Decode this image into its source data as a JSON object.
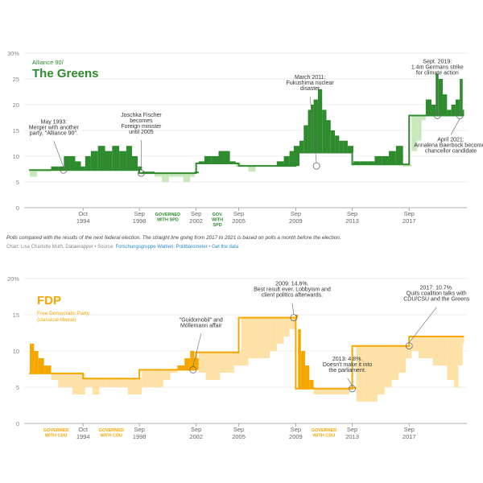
{
  "chart_data": [
    {
      "type": "area",
      "panel": "greens",
      "subtitle": "Alliance 90/",
      "title": "The Greens",
      "color": "#2e8b2e",
      "light_color": "#c9e8bd",
      "ylim": [
        0,
        30
      ],
      "y_ticks": [
        "0",
        "5",
        "10",
        "15",
        "20",
        "25",
        "30%"
      ],
      "x_ticks": [
        {
          "label": "Oct",
          "sub": "1994",
          "year": 1994.75
        },
        {
          "label": "Sep",
          "sub": "1998",
          "year": 1998.72
        },
        {
          "label": "Sep",
          "sub": "2002",
          "year": 2002.72
        },
        {
          "label": "Sep",
          "sub": "2005",
          "year": 2005.72
        },
        {
          "label": "Sep",
          "sub": "2009",
          "year": 2009.74
        },
        {
          "label": "Sep",
          "sub": "2013",
          "year": 2013.72
        },
        {
          "label": "Sep",
          "sub": "2017",
          "year": 2017.73
        }
      ],
      "government_periods": [
        {
          "label": "GOVERNED WITH SPD",
          "start": 1998.72,
          "end": 2002.72
        },
        {
          "label": "GOV. WITH SPD",
          "start": 2002.72,
          "end": 2005.72
        }
      ],
      "election_results": [
        {
          "start": 1990.95,
          "end": 1994.75,
          "value": 7.3
        },
        {
          "start": 1994.75,
          "end": 1998.72,
          "value": 7.3
        },
        {
          "start": 1998.72,
          "end": 2002.72,
          "value": 6.7
        },
        {
          "start": 2002.72,
          "end": 2005.72,
          "value": 8.6
        },
        {
          "start": 2005.72,
          "end": 2009.74,
          "value": 8.1
        },
        {
          "start": 2009.74,
          "end": 2013.72,
          "value": 10.7
        },
        {
          "start": 2013.72,
          "end": 2017.73,
          "value": 8.4
        },
        {
          "start": 2017.73,
          "end": 2021.6,
          "value": 17.9
        }
      ],
      "poll_points": [
        [
          1991.0,
          6
        ],
        [
          1991.5,
          7
        ],
        [
          1992.0,
          7
        ],
        [
          1992.5,
          8
        ],
        [
          1993.0,
          8
        ],
        [
          1993.4,
          10
        ],
        [
          1993.8,
          10
        ],
        [
          1994.2,
          9
        ],
        [
          1994.6,
          8
        ],
        [
          1994.9,
          10
        ],
        [
          1995.3,
          11
        ],
        [
          1995.8,
          12
        ],
        [
          1996.3,
          11
        ],
        [
          1996.8,
          12
        ],
        [
          1997.3,
          11
        ],
        [
          1997.8,
          12
        ],
        [
          1998.2,
          10
        ],
        [
          1998.6,
          8
        ],
        [
          1998.9,
          7
        ],
        [
          1999.3,
          7
        ],
        [
          1999.8,
          6
        ],
        [
          2000.3,
          5
        ],
        [
          2000.8,
          6
        ],
        [
          2001.3,
          6
        ],
        [
          2001.8,
          5
        ],
        [
          2002.3,
          6
        ],
        [
          2002.6,
          7
        ],
        [
          2002.9,
          9
        ],
        [
          2003.3,
          10
        ],
        [
          2003.8,
          10
        ],
        [
          2004.3,
          11
        ],
        [
          2004.7,
          11
        ],
        [
          2005.1,
          9
        ],
        [
          2005.5,
          8
        ],
        [
          2005.9,
          8
        ],
        [
          2006.4,
          7
        ],
        [
          2006.9,
          8
        ],
        [
          2007.4,
          8
        ],
        [
          2007.9,
          8
        ],
        [
          2008.4,
          9
        ],
        [
          2008.9,
          10
        ],
        [
          2009.3,
          11
        ],
        [
          2009.6,
          12
        ],
        [
          2010.0,
          13
        ],
        [
          2010.3,
          16
        ],
        [
          2010.6,
          19
        ],
        [
          2010.8,
          20
        ],
        [
          2011.0,
          21
        ],
        [
          2011.3,
          23
        ],
        [
          2011.6,
          19
        ],
        [
          2011.9,
          17
        ],
        [
          2012.2,
          15
        ],
        [
          2012.5,
          14
        ],
        [
          2012.8,
          13
        ],
        [
          2013.1,
          13
        ],
        [
          2013.4,
          12
        ],
        [
          2013.8,
          9
        ],
        [
          2014.3,
          9
        ],
        [
          2014.8,
          9
        ],
        [
          2015.3,
          10
        ],
        [
          2015.8,
          10
        ],
        [
          2016.3,
          11
        ],
        [
          2016.8,
          12
        ],
        [
          2017.3,
          8
        ],
        [
          2017.6,
          8
        ],
        [
          2017.9,
          11
        ],
        [
          2018.3,
          13
        ],
        [
          2018.6,
          17
        ],
        [
          2018.9,
          21
        ],
        [
          2019.3,
          20
        ],
        [
          2019.6,
          26
        ],
        [
          2019.8,
          25
        ],
        [
          2020.1,
          22
        ],
        [
          2020.4,
          19
        ],
        [
          2020.7,
          20
        ],
        [
          2021.0,
          21
        ],
        [
          2021.3,
          25
        ],
        [
          2021.5,
          19
        ]
      ],
      "annotations": [
        {
          "lines": [
            "May 1993:",
            "Merger with another",
            "party, \"Alliance 90\"."
          ],
          "x": 1993.37,
          "y": 7.3
        },
        {
          "lines": [
            "Joschka Fischer",
            "becomes",
            "Foreign minister",
            "until 2005"
          ],
          "x": 1998.85,
          "y": 6.7
        },
        {
          "lines": [
            "March 2011:",
            "Fukushima nuclear",
            "disaster"
          ],
          "x": 2011.2,
          "y": 8.1
        },
        {
          "lines": [
            "Sept. 2019:",
            "1.4m Germans strike",
            "for climate action"
          ],
          "x": 2019.72,
          "y": 17.9
        },
        {
          "lines": [
            "April 2021:",
            "Annalena Baerbock becomes",
            "chancellor candidate"
          ],
          "x": 2021.3,
          "y": 17.9
        }
      ]
    },
    {
      "type": "area",
      "panel": "fdp",
      "title": "FDP",
      "subtitle": "Free Democratic Party (classical-liberal)",
      "color": "#f5a700",
      "light_color": "#fde1a6",
      "ylim": [
        0,
        20
      ],
      "y_ticks": [
        "0",
        "5",
        "10",
        "15",
        "20%"
      ],
      "x_ticks": [
        {
          "label": "Oct",
          "sub": "1994",
          "year": 1994.75
        },
        {
          "label": "Sep",
          "sub": "1998",
          "year": 1998.72
        },
        {
          "label": "Sep",
          "sub": "2002",
          "year": 2002.72
        },
        {
          "label": "Sep",
          "sub": "2005",
          "year": 2005.72
        },
        {
          "label": "Sep",
          "sub": "2009",
          "year": 2009.74
        },
        {
          "label": "Sep",
          "sub": "2013",
          "year": 2013.72
        },
        {
          "label": "Sep",
          "sub": "2017",
          "year": 2017.73
        }
      ],
      "government_periods": [
        {
          "label": "GOVERNED WITH CDU",
          "start": 1990.95,
          "end": 1994.75
        },
        {
          "label": "GOVERNED WITH CDU",
          "start": 1994.75,
          "end": 1998.72
        },
        {
          "label": "GOVERNED WITH CDU",
          "start": 2009.74,
          "end": 2013.72
        }
      ],
      "election_results": [
        {
          "start": 1990.95,
          "end": 1994.75,
          "value": 6.9
        },
        {
          "start": 1994.75,
          "end": 1998.72,
          "value": 6.2
        },
        {
          "start": 1998.72,
          "end": 2002.72,
          "value": 7.4
        },
        {
          "start": 2002.72,
          "end": 2005.72,
          "value": 9.8
        },
        {
          "start": 2005.72,
          "end": 2009.74,
          "value": 14.6
        },
        {
          "start": 2009.74,
          "end": 2013.72,
          "value": 4.8
        },
        {
          "start": 2013.72,
          "end": 2017.73,
          "value": 10.7
        },
        {
          "start": 2017.73,
          "end": 2021.6,
          "value": 12.0
        }
      ],
      "poll_points": [
        [
          1991.0,
          11
        ],
        [
          1991.3,
          10
        ],
        [
          1991.6,
          9
        ],
        [
          1992.0,
          8
        ],
        [
          1992.5,
          6
        ],
        [
          1993.0,
          5
        ],
        [
          1993.5,
          5
        ],
        [
          1994.0,
          4
        ],
        [
          1994.5,
          4
        ],
        [
          1994.9,
          5
        ],
        [
          1995.4,
          4
        ],
        [
          1995.9,
          5
        ],
        [
          1996.4,
          5
        ],
        [
          1996.9,
          5
        ],
        [
          1997.4,
          5
        ],
        [
          1997.9,
          4
        ],
        [
          1998.4,
          4
        ],
        [
          1998.9,
          5
        ],
        [
          1999.4,
          5
        ],
        [
          1999.9,
          5
        ],
        [
          2000.4,
          6
        ],
        [
          2000.9,
          7
        ],
        [
          2001.4,
          8
        ],
        [
          2001.9,
          9
        ],
        [
          2002.3,
          10
        ],
        [
          2002.6,
          9
        ],
        [
          2002.9,
          7
        ],
        [
          2003.4,
          6
        ],
        [
          2003.9,
          6
        ],
        [
          2004.4,
          7
        ],
        [
          2004.9,
          7
        ],
        [
          2005.4,
          8
        ],
        [
          2005.9,
          8
        ],
        [
          2006.4,
          9
        ],
        [
          2006.9,
          9
        ],
        [
          2007.4,
          9
        ],
        [
          2007.9,
          10
        ],
        [
          2008.4,
          11
        ],
        [
          2008.9,
          12
        ],
        [
          2009.3,
          13
        ],
        [
          2009.7,
          15
        ],
        [
          2009.9,
          13
        ],
        [
          2010.1,
          10
        ],
        [
          2010.4,
          8
        ],
        [
          2010.7,
          6
        ],
        [
          2011.0,
          4
        ],
        [
          2011.5,
          4
        ],
        [
          2012.0,
          4
        ],
        [
          2012.5,
          4
        ],
        [
          2013.0,
          4
        ],
        [
          2013.5,
          5
        ],
        [
          2014.0,
          3
        ],
        [
          2014.5,
          3
        ],
        [
          2015.0,
          3
        ],
        [
          2015.5,
          4
        ],
        [
          2016.0,
          5
        ],
        [
          2016.5,
          6
        ],
        [
          2017.0,
          7
        ],
        [
          2017.5,
          9
        ],
        [
          2017.9,
          10
        ],
        [
          2018.4,
          9
        ],
        [
          2018.9,
          9
        ],
        [
          2019.4,
          8
        ],
        [
          2019.9,
          8
        ],
        [
          2020.4,
          6
        ],
        [
          2020.9,
          5
        ],
        [
          2021.2,
          8
        ],
        [
          2021.5,
          11
        ]
      ],
      "annotations": [
        {
          "lines": [
            "\"Guidomobil\" and",
            "Möllemann affair"
          ],
          "x": 2002.5,
          "y": 7.4
        },
        {
          "lines": [
            "2009: 14.6%.",
            "Best result ever. Lobbyism and",
            "client politics afterwards."
          ],
          "x": 2009.6,
          "y": 14.6
        },
        {
          "lines": [
            "2013: 4.8%.",
            "Doesn't make it into",
            "the parliament."
          ],
          "x": 2013.72,
          "y": 4.8
        },
        {
          "lines": [
            "2017: 10.7%.",
            "Quits coalition talks with",
            "CDU/CSU and the Greens"
          ],
          "x": 2017.73,
          "y": 10.7
        }
      ]
    }
  ],
  "notes": {
    "polls_note": "Polls compared with the results of the next federal election. The straight line going from 2017 to 2021 is based on polls a month before the election.",
    "credit_prefix": "Chart: Lisa Charlotte Muth, Datawrapper • Source: ",
    "source_link": "Forschungsgruppe Wahlen: Politbarometer",
    "separator": " • ",
    "data_link": "Get the data"
  }
}
